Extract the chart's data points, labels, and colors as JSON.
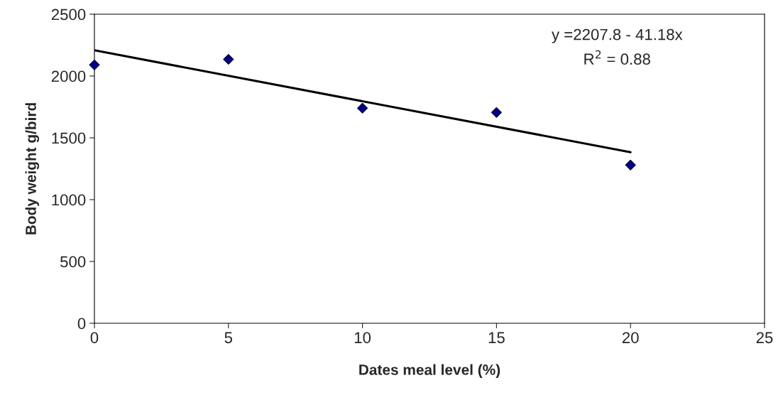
{
  "chart_data": {
    "type": "scatter",
    "xlabel": "Dates meal level (%)",
    "ylabel": "Body weight g/bird",
    "x": [
      0,
      5,
      10,
      15,
      20
    ],
    "series": [
      {
        "color": "#000080",
        "marker": "diamond",
        "values": [
          2090,
          2135,
          1740,
          1705,
          1280
        ]
      },
      {
        "type": "line",
        "color": "#000000",
        "x": [
          0,
          20
        ],
        "values": [
          2208,
          1384
        ]
      }
    ],
    "annotations": [
      "y =2207.8 - 41.18x",
      "R$^{2}$ = 0.88"
    ],
    "xlim": [
      0,
      25
    ],
    "xticks": [
      0,
      5,
      10,
      15,
      20,
      25
    ],
    "ylim": [
      0,
      2500
    ],
    "yticks": [
      0,
      500,
      1000,
      1500,
      2000,
      2500
    ],
    "grid": false,
    "legend": false
  }
}
